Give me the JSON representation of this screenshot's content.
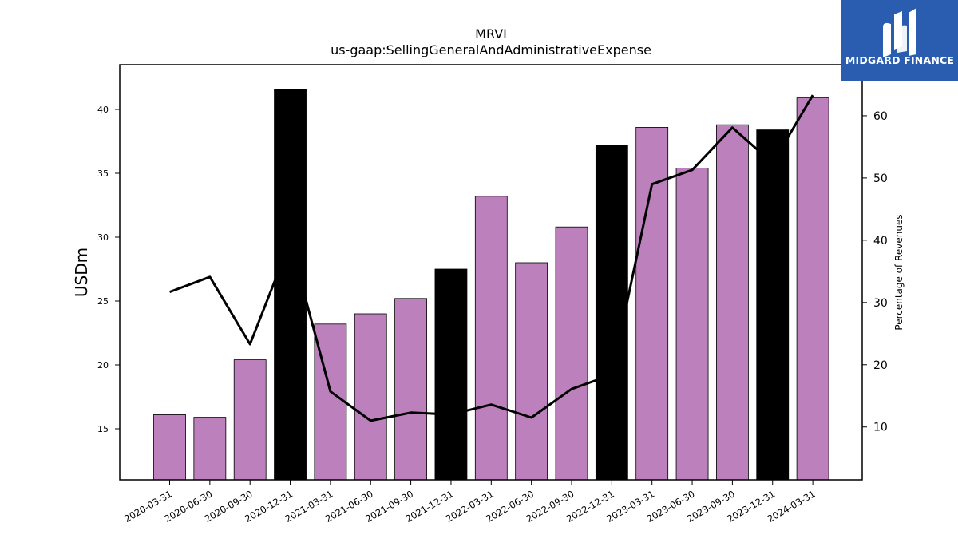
{
  "brand": {
    "name": "MIDGARD FINANCE",
    "color": "#2a5db0"
  },
  "chart_data": {
    "type": "bar",
    "title": "MRVI",
    "subtitle": "us-gaap:SellingGeneralAndAdministrativeExpense",
    "ylabel": "USDm",
    "y2label": "Percentage of Revenues",
    "categories": [
      "2020-03-31",
      "2020-06-30",
      "2020-09-30",
      "2020-12-31",
      "2021-03-31",
      "2021-06-30",
      "2021-09-30",
      "2021-12-31",
      "2022-03-31",
      "2022-06-30",
      "2022-09-30",
      "2022-12-31",
      "2023-03-31",
      "2023-06-30",
      "2023-09-30",
      "2023-12-31",
      "2024-03-31"
    ],
    "values": [
      16.1,
      15.9,
      20.4,
      41.6,
      23.2,
      24.0,
      25.2,
      27.5,
      33.2,
      28.0,
      30.8,
      37.2,
      38.6,
      35.4,
      38.8,
      38.4,
      40.9
    ],
    "highlight": [
      false,
      false,
      false,
      true,
      false,
      false,
      false,
      true,
      false,
      false,
      false,
      true,
      false,
      false,
      false,
      true,
      false
    ],
    "bar_color": "#bc80bd",
    "highlight_color": "#000000",
    "line_series": {
      "name": "Percentage of Revenues",
      "values": [
        31.7,
        34.1,
        23.3,
        39.8,
        15.7,
        11.0,
        12.3,
        12.0,
        13.6,
        11.5,
        16.1,
        18.4,
        49.0,
        51.3,
        58.1,
        52.4,
        63.3
      ],
      "color": "#000000"
    },
    "ylim": [
      11.0,
      43.5
    ],
    "y2lim": [
      1.5,
      68.2
    ],
    "yticks": [
      15,
      20,
      25,
      30,
      35,
      40
    ],
    "y2ticks": [
      10,
      20,
      30,
      40,
      50,
      60
    ],
    "grid": false,
    "legend": "none"
  }
}
